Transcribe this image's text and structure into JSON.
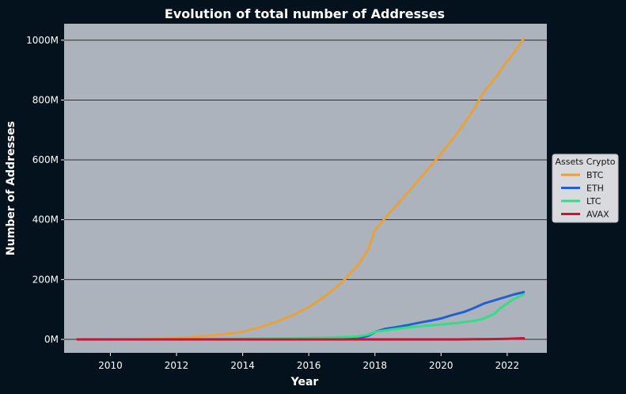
{
  "chart_data": {
    "type": "line",
    "title": "Evolution of total number of Addresses",
    "xlabel": "Year",
    "ylabel": "Number of Addresses",
    "xlim": [
      2008.6,
      2023.2
    ],
    "ylim": [
      -45,
      1055
    ],
    "xticks": [
      2010,
      2012,
      2014,
      2016,
      2018,
      2020,
      2022
    ],
    "yticks": [
      0,
      200,
      400,
      600,
      800,
      1000
    ],
    "yticklabels": [
      "0M",
      "200M",
      "400M",
      "600M",
      "800M",
      "1000M"
    ],
    "grid": "horizontal",
    "legend": {
      "title": "Assets Crypto",
      "placement": "right-outside"
    },
    "plot_background": "#adb3bc",
    "figure_background": "#03121c",
    "series": [
      {
        "name": "BTC",
        "color": "#e6a23c",
        "x": [
          2009.0,
          2010.0,
          2011.0,
          2012.0,
          2012.5,
          2013.0,
          2013.5,
          2014.0,
          2014.5,
          2015.0,
          2015.5,
          2016.0,
          2016.5,
          2017.0,
          2017.5,
          2017.8,
          2018.0,
          2018.5,
          2019.0,
          2019.5,
          2020.0,
          2020.5,
          2021.0,
          2021.25,
          2021.5,
          2021.75,
          2022.0,
          2022.25,
          2022.5
        ],
        "y": [
          0,
          0.5,
          1.5,
          4,
          8,
          13,
          18,
          25,
          40,
          58,
          80,
          108,
          145,
          190,
          250,
          300,
          365,
          430,
          490,
          555,
          620,
          690,
          770,
          820,
          855,
          890,
          930,
          965,
          1005
        ]
      },
      {
        "name": "ETH",
        "color": "#2060d0",
        "x": [
          2009.0,
          2015.5,
          2016.0,
          2016.5,
          2017.0,
          2017.5,
          2017.8,
          2018.0,
          2018.3,
          2018.7,
          2019.0,
          2019.3,
          2019.7,
          2020.0,
          2020.3,
          2020.7,
          2021.0,
          2021.3,
          2021.6,
          2021.9,
          2022.2,
          2022.5
        ],
        "y": [
          0,
          0,
          0.5,
          1,
          2,
          4,
          12,
          25,
          35,
          42,
          48,
          55,
          63,
          70,
          80,
          92,
          105,
          120,
          130,
          140,
          150,
          158
        ]
      },
      {
        "name": "LTC",
        "color": "#33dd88",
        "x": [
          2009.0,
          2011.5,
          2012.5,
          2013.5,
          2014.5,
          2015.5,
          2016.5,
          2017.5,
          2017.8,
          2018.0,
          2018.5,
          2019.0,
          2019.5,
          2020.0,
          2020.5,
          2021.0,
          2021.3,
          2021.6,
          2021.8,
          2022.0,
          2022.2,
          2022.5
        ],
        "y": [
          0,
          0,
          1,
          2,
          3,
          4,
          6,
          10,
          16,
          25,
          33,
          40,
          45,
          50,
          55,
          62,
          70,
          85,
          105,
          120,
          135,
          150
        ]
      },
      {
        "name": "AVAX",
        "color": "#cc1133",
        "x": [
          2009.0,
          2020.5,
          2021.0,
          2021.5,
          2022.0,
          2022.5
        ],
        "y": [
          0,
          0,
          0.5,
          1,
          2,
          4
        ]
      }
    ]
  }
}
